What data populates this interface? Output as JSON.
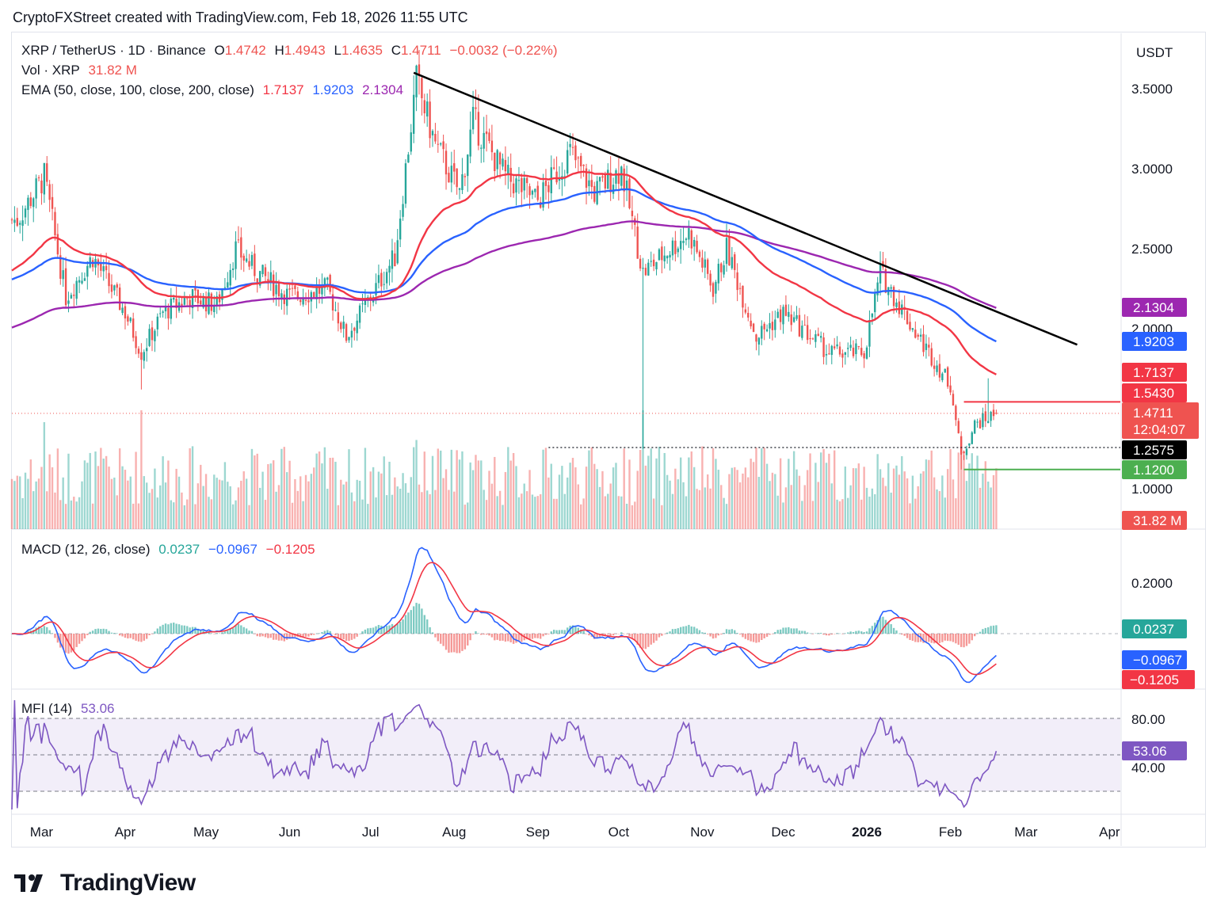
{
  "header": {
    "text": "CryptoFXStreet created with TradingView.com, Feb 18, 2026 11:55 UTC"
  },
  "currency": "USDT",
  "legend": {
    "symbol": "XRP / TetherUS · 1D · Binance",
    "open_label": "O",
    "open": "1.4742",
    "high_label": "H",
    "high": "1.4943",
    "low_label": "L",
    "low": "1.4635",
    "close_label": "C",
    "close": "1.4711",
    "change": "−0.0032 (−0.22%)",
    "vol_label": "Vol · XRP",
    "vol_value": "31.82 M",
    "ema_label": "EMA (50, close, 100, close, 200, close)",
    "ema50": "1.7137",
    "ema100": "1.9203",
    "ema200": "2.1304"
  },
  "price_axis": {
    "ticks": [
      "3.5000",
      "3.0000",
      "2.5000",
      "2.0000",
      "1.0000"
    ]
  },
  "price_badges": {
    "ema200": "2.1304",
    "ema100": "1.9203",
    "ema50": "1.7137",
    "resistance": "1.5430",
    "last": "1.4711",
    "countdown": "12:04:07",
    "support_dotted": "1.2575",
    "support_green": "1.1200",
    "volume": "31.82 M"
  },
  "macd": {
    "label": "MACD (12, 26, close)",
    "hist": "0.0237",
    "macd": "−0.0967",
    "signal": "−0.1205",
    "tick": "0.2000",
    "badge_hist": "0.0237",
    "badge_macd": "−0.0967",
    "badge_signal": "−0.1205"
  },
  "mfi": {
    "label": "MFI (14)",
    "value": "53.06",
    "tick80": "80.00",
    "tick40": "40.00",
    "badge": "53.06"
  },
  "time_axis": [
    "Mar",
    "Apr",
    "May",
    "Jun",
    "Jul",
    "Aug",
    "Sep",
    "Oct",
    "Nov",
    "Dec",
    "2026",
    "Feb",
    "Mar",
    "Apr"
  ],
  "logo": {
    "text": "TradingView"
  },
  "colors": {
    "up": "#26a69a",
    "down": "#ef5350",
    "ema50": "#f23645",
    "ema100": "#2962ff",
    "ema200": "#9c27b0",
    "macd": "#2962ff",
    "signal": "#f23645",
    "mfi": "#7e57c2",
    "support": "#4caf50",
    "resistance": "#f23645",
    "trend": "#000000"
  },
  "chart_data": {
    "type": "candlestick",
    "title": "XRP / TetherUS · 1D · Binance",
    "ylabel": "USDT",
    "ylim": [
      0.8,
      3.7
    ],
    "x_range": [
      "2025-02-18",
      "2026-04-05"
    ],
    "close_anchors": [
      {
        "date": "2025-02-20",
        "close": 2.68
      },
      {
        "date": "2025-03-02",
        "close": 2.95
      },
      {
        "date": "2025-03-10",
        "close": 2.2
      },
      {
        "date": "2025-03-20",
        "close": 2.45
      },
      {
        "date": "2025-04-01",
        "close": 2.1
      },
      {
        "date": "2025-04-07",
        "close": 1.85
      },
      {
        "date": "2025-04-15",
        "close": 2.1
      },
      {
        "date": "2025-04-25",
        "close": 2.2
      },
      {
        "date": "2025-05-05",
        "close": 2.15
      },
      {
        "date": "2025-05-12",
        "close": 2.5
      },
      {
        "date": "2025-05-20",
        "close": 2.35
      },
      {
        "date": "2025-06-01",
        "close": 2.2
      },
      {
        "date": "2025-06-15",
        "close": 2.25
      },
      {
        "date": "2025-06-22",
        "close": 1.95
      },
      {
        "date": "2025-07-01",
        "close": 2.2
      },
      {
        "date": "2025-07-10",
        "close": 2.45
      },
      {
        "date": "2025-07-18",
        "close": 3.55
      },
      {
        "date": "2025-07-25",
        "close": 3.15
      },
      {
        "date": "2025-08-03",
        "close": 2.85
      },
      {
        "date": "2025-08-08",
        "close": 3.3
      },
      {
        "date": "2025-08-20",
        "close": 2.95
      },
      {
        "date": "2025-09-01",
        "close": 2.8
      },
      {
        "date": "2025-09-13",
        "close": 3.1
      },
      {
        "date": "2025-09-22",
        "close": 2.85
      },
      {
        "date": "2025-10-02",
        "close": 3.0
      },
      {
        "date": "2025-10-10",
        "close": 2.35
      },
      {
        "date": "2025-10-20",
        "close": 2.5
      },
      {
        "date": "2025-10-27",
        "close": 2.6
      },
      {
        "date": "2025-11-05",
        "close": 2.25
      },
      {
        "date": "2025-11-10",
        "close": 2.5
      },
      {
        "date": "2025-11-21",
        "close": 1.95
      },
      {
        "date": "2025-12-01",
        "close": 2.1
      },
      {
        "date": "2025-12-18",
        "close": 1.85
      },
      {
        "date": "2025-12-31",
        "close": 1.85
      },
      {
        "date": "2026-01-06",
        "close": 2.35
      },
      {
        "date": "2026-01-20",
        "close": 1.95
      },
      {
        "date": "2026-02-01",
        "close": 1.65
      },
      {
        "date": "2026-02-05",
        "close": 1.2
      },
      {
        "date": "2026-02-10",
        "close": 1.4
      },
      {
        "date": "2026-02-18",
        "close": 1.4711
      }
    ],
    "ema": [
      {
        "name": "EMA 50",
        "last": 1.7137
      },
      {
        "name": "EMA 100",
        "last": 1.9203
      },
      {
        "name": "EMA 200",
        "last": 2.1304
      }
    ],
    "levels": [
      {
        "name": "resistance",
        "value": 1.543
      },
      {
        "name": "last price",
        "value": 1.4711
      },
      {
        "name": "support",
        "value": 1.2575
      },
      {
        "name": "support",
        "value": 1.12
      }
    ],
    "trendline": [
      {
        "date": "2025-07-17",
        "value": 3.6
      },
      {
        "date": "2026-03-20",
        "value": 1.9
      }
    ],
    "volume_last": "31.82 M",
    "macd": {
      "params": [
        12,
        26
      ],
      "macd_last": -0.0967,
      "signal_last": -0.1205,
      "hist_last": 0.0237,
      "peak": {
        "date": "2025-07-20",
        "value": 0.33
      }
    },
    "mfi": {
      "period": 14,
      "last": 53.06,
      "bands": [
        20,
        50,
        80
      ]
    },
    "x_tick_labels": [
      "Mar",
      "Apr",
      "May",
      "Jun",
      "Jul",
      "Aug",
      "Sep",
      "Oct",
      "Nov",
      "Dec",
      "2026",
      "Feb",
      "Mar",
      "Apr"
    ]
  }
}
